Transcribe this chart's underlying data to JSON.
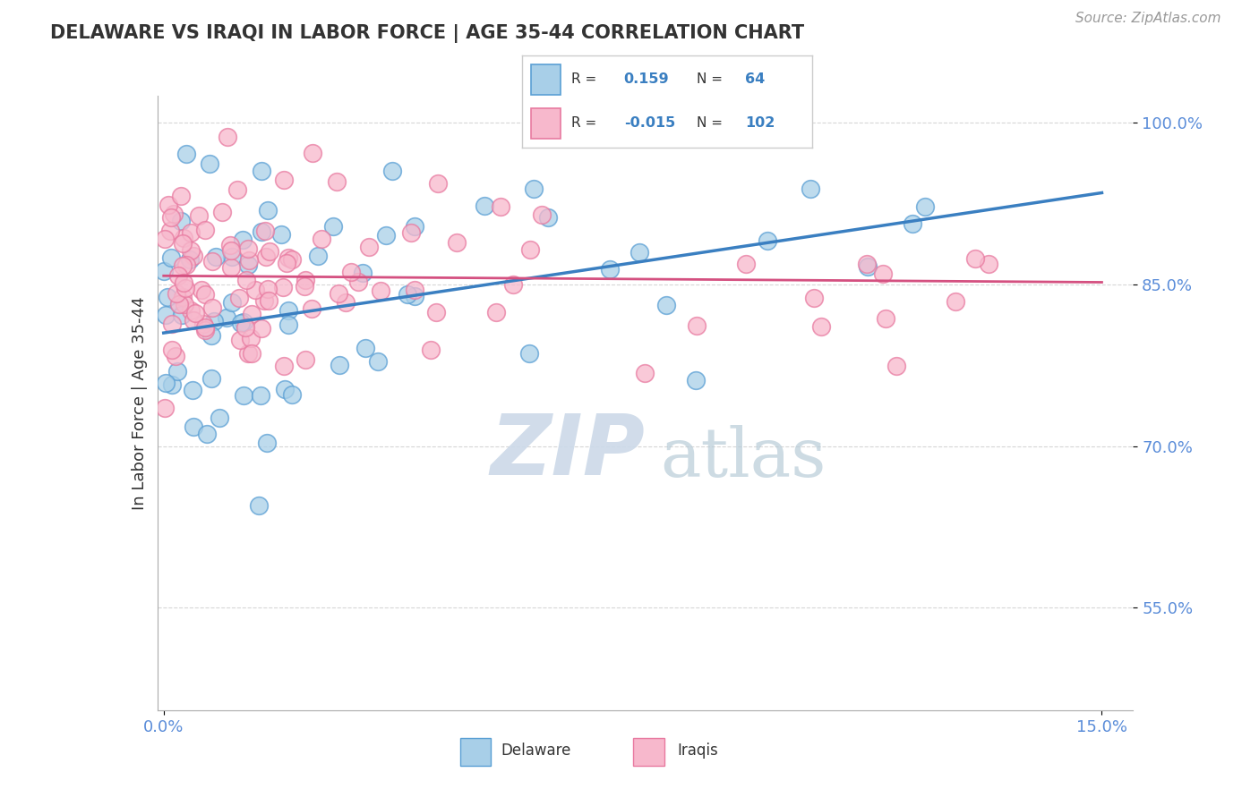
{
  "title": "DELAWARE VS IRAQI IN LABOR FORCE | AGE 35-44 CORRELATION CHART",
  "source_text": "Source: ZipAtlas.com",
  "ylabel": "In Labor Force | Age 35-44",
  "xlim": [
    -0.001,
    0.155
  ],
  "ylim": [
    0.455,
    1.025
  ],
  "yticks": [
    0.55,
    0.7,
    0.85,
    1.0
  ],
  "ytick_labels": [
    "55.0%",
    "70.0%",
    "85.0%",
    "100.0%"
  ],
  "xticks": [
    0.0,
    0.15
  ],
  "xtick_labels": [
    "0.0%",
    "15.0%"
  ],
  "delaware_color": "#a8cfe8",
  "iraqi_color": "#f7b8cc",
  "delaware_edge_color": "#5a9fd4",
  "iraqi_edge_color": "#e87aa0",
  "delaware_line_color": "#3a7fc1",
  "iraqi_line_color": "#d45080",
  "watermark_color": "#ccd9e8",
  "background_color": "#ffffff",
  "grid_color": "#cccccc",
  "tick_color": "#5b8dd9",
  "text_color": "#333333",
  "source_color": "#999999",
  "legend_border_color": "#cccccc",
  "del_line_x0": 0.0,
  "del_line_x1": 0.15,
  "del_line_y0": 0.805,
  "del_line_y1": 0.935,
  "iraqi_line_x0": 0.0,
  "iraqi_line_x1": 0.15,
  "iraqi_line_y0": 0.858,
  "iraqi_line_y1": 0.852
}
